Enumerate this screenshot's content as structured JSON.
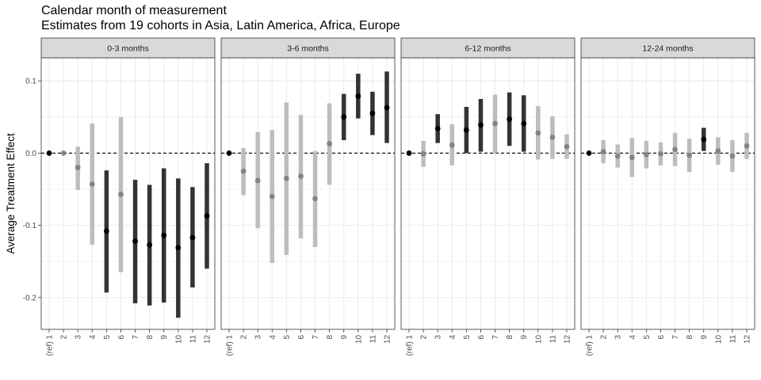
{
  "title": "Calendar month of measurement",
  "subtitle": "Estimates from 19 cohorts in Asia, Latin America, Africa, Europe",
  "chart_data": {
    "type": "scatter",
    "title": "Calendar month of measurement",
    "subtitle": "Estimates from 19 cohorts in Asia, Latin America, Africa, Europe",
    "xlabel": "",
    "ylabel": "Average Treatment Effect",
    "ylim": [
      -0.244,
      0.132
    ],
    "y_ticks": [
      0.1,
      0.0,
      -0.1,
      -0.2
    ],
    "y_tick_labels": [
      "0.1",
      "0.0",
      "-0.1",
      "-0.2"
    ],
    "categories": [
      "(ref) 1",
      "2",
      "3",
      "4",
      "5",
      "6",
      "7",
      "8",
      "9",
      "10",
      "11",
      "12"
    ],
    "reference_line": 0,
    "grid": true,
    "colors": {
      "significant": "#000000",
      "not_significant": "#999999",
      "strip_fill": "#d9d9d9",
      "panel_border": "#333333",
      "grid": "#ebebeb"
    },
    "panels": [
      {
        "label": "0-3 months",
        "points": [
          {
            "x": "(ref) 1",
            "est": 0.0,
            "lo": null,
            "hi": null,
            "sig": true
          },
          {
            "x": "2",
            "est": 0.0,
            "lo": null,
            "hi": null,
            "sig": false
          },
          {
            "x": "3",
            "est": -0.02,
            "lo": -0.051,
            "hi": 0.009,
            "sig": false
          },
          {
            "x": "4",
            "est": -0.043,
            "lo": -0.127,
            "hi": 0.041,
            "sig": false
          },
          {
            "x": "5",
            "est": -0.108,
            "lo": -0.193,
            "hi": -0.024,
            "sig": true
          },
          {
            "x": "6",
            "est": -0.057,
            "lo": -0.165,
            "hi": 0.05,
            "sig": false
          },
          {
            "x": "7",
            "est": -0.122,
            "lo": -0.208,
            "hi": -0.037,
            "sig": true
          },
          {
            "x": "8",
            "est": -0.127,
            "lo": -0.211,
            "hi": -0.044,
            "sig": true
          },
          {
            "x": "9",
            "est": -0.114,
            "lo": -0.207,
            "hi": -0.021,
            "sig": true
          },
          {
            "x": "10",
            "est": -0.131,
            "lo": -0.228,
            "hi": -0.035,
            "sig": true
          },
          {
            "x": "11",
            "est": -0.117,
            "lo": -0.186,
            "hi": -0.047,
            "sig": true
          },
          {
            "x": "12",
            "est": -0.087,
            "lo": -0.16,
            "hi": -0.014,
            "sig": true
          }
        ]
      },
      {
        "label": "3-6 months",
        "points": [
          {
            "x": "(ref) 1",
            "est": 0.0,
            "lo": null,
            "hi": null,
            "sig": true
          },
          {
            "x": "2",
            "est": -0.025,
            "lo": -0.058,
            "hi": 0.007,
            "sig": false
          },
          {
            "x": "3",
            "est": -0.038,
            "lo": -0.104,
            "hi": 0.029,
            "sig": false
          },
          {
            "x": "4",
            "est": -0.06,
            "lo": -0.152,
            "hi": 0.032,
            "sig": false
          },
          {
            "x": "5",
            "est": -0.035,
            "lo": -0.141,
            "hi": 0.07,
            "sig": false
          },
          {
            "x": "6",
            "est": -0.032,
            "lo": -0.118,
            "hi": 0.053,
            "sig": false
          },
          {
            "x": "7",
            "est": -0.063,
            "lo": -0.13,
            "hi": 0.003,
            "sig": false
          },
          {
            "x": "8",
            "est": 0.013,
            "lo": -0.044,
            "hi": 0.069,
            "sig": false
          },
          {
            "x": "9",
            "est": 0.05,
            "lo": 0.018,
            "hi": 0.082,
            "sig": true
          },
          {
            "x": "10",
            "est": 0.079,
            "lo": 0.048,
            "hi": 0.11,
            "sig": true
          },
          {
            "x": "11",
            "est": 0.055,
            "lo": 0.025,
            "hi": 0.085,
            "sig": true
          },
          {
            "x": "12",
            "est": 0.063,
            "lo": 0.014,
            "hi": 0.113,
            "sig": true
          }
        ]
      },
      {
        "label": "6-12 months",
        "points": [
          {
            "x": "(ref) 1",
            "est": 0.0,
            "lo": null,
            "hi": null,
            "sig": true
          },
          {
            "x": "2",
            "est": -0.001,
            "lo": -0.019,
            "hi": 0.017,
            "sig": false
          },
          {
            "x": "3",
            "est": 0.034,
            "lo": 0.014,
            "hi": 0.054,
            "sig": true
          },
          {
            "x": "4",
            "est": 0.011,
            "lo": -0.017,
            "hi": 0.04,
            "sig": false
          },
          {
            "x": "5",
            "est": 0.032,
            "lo": 0.0,
            "hi": 0.064,
            "sig": true
          },
          {
            "x": "6",
            "est": 0.039,
            "lo": 0.002,
            "hi": 0.075,
            "sig": true
          },
          {
            "x": "7",
            "est": 0.041,
            "lo": 0.0,
            "hi": 0.081,
            "sig": false
          },
          {
            "x": "8",
            "est": 0.047,
            "lo": 0.01,
            "hi": 0.084,
            "sig": true
          },
          {
            "x": "9",
            "est": 0.041,
            "lo": 0.002,
            "hi": 0.08,
            "sig": true
          },
          {
            "x": "10",
            "est": 0.028,
            "lo": -0.009,
            "hi": 0.065,
            "sig": false
          },
          {
            "x": "11",
            "est": 0.022,
            "lo": -0.008,
            "hi": 0.051,
            "sig": false
          },
          {
            "x": "12",
            "est": 0.009,
            "lo": -0.008,
            "hi": 0.026,
            "sig": false
          }
        ]
      },
      {
        "label": "12-24 months",
        "points": [
          {
            "x": "(ref) 1",
            "est": 0.0,
            "lo": null,
            "hi": null,
            "sig": true
          },
          {
            "x": "2",
            "est": 0.002,
            "lo": -0.014,
            "hi": 0.018,
            "sig": false
          },
          {
            "x": "3",
            "est": -0.004,
            "lo": -0.02,
            "hi": 0.012,
            "sig": false
          },
          {
            "x": "4",
            "est": -0.006,
            "lo": -0.033,
            "hi": 0.021,
            "sig": false
          },
          {
            "x": "5",
            "est": -0.002,
            "lo": -0.021,
            "hi": 0.017,
            "sig": false
          },
          {
            "x": "6",
            "est": -0.001,
            "lo": -0.017,
            "hi": 0.015,
            "sig": false
          },
          {
            "x": "7",
            "est": 0.005,
            "lo": -0.018,
            "hi": 0.028,
            "sig": false
          },
          {
            "x": "8",
            "est": -0.003,
            "lo": -0.026,
            "hi": 0.02,
            "sig": false
          },
          {
            "x": "9",
            "est": 0.019,
            "lo": 0.003,
            "hi": 0.035,
            "sig": true
          },
          {
            "x": "10",
            "est": 0.003,
            "lo": -0.016,
            "hi": 0.022,
            "sig": false
          },
          {
            "x": "11",
            "est": -0.004,
            "lo": -0.026,
            "hi": 0.018,
            "sig": false
          },
          {
            "x": "12",
            "est": 0.01,
            "lo": -0.008,
            "hi": 0.028,
            "sig": false
          }
        ]
      }
    ]
  }
}
